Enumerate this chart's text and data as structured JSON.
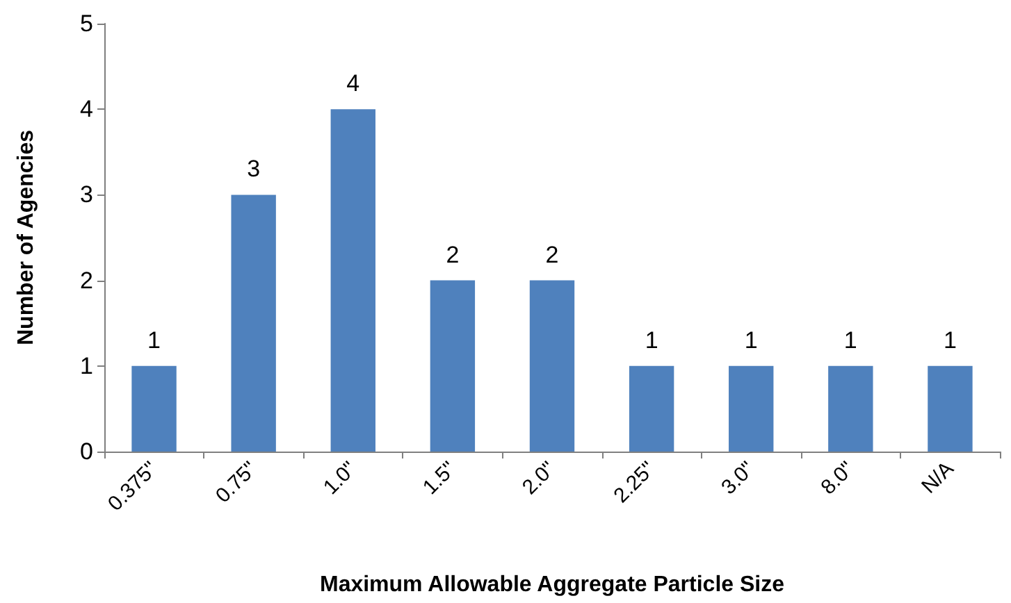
{
  "chart_data": {
    "type": "bar",
    "xlabel": "Maximum Allowable Aggregate Particle Size",
    "ylabel": "Number of Agencies",
    "categories": [
      "0.375\"",
      "0.75\"",
      "1.0\"",
      "1.5\"",
      "2.0\"",
      "2.25\"",
      "3.0\"",
      "8.0\"",
      "N/A"
    ],
    "values": [
      1,
      3,
      4,
      2,
      2,
      1,
      1,
      1,
      1
    ],
    "color": "#4f81bd",
    "ylim": [
      0,
      5
    ],
    "yticks": [
      0,
      1,
      2,
      3,
      4,
      5
    ],
    "grid": false,
    "data_labels": true
  }
}
